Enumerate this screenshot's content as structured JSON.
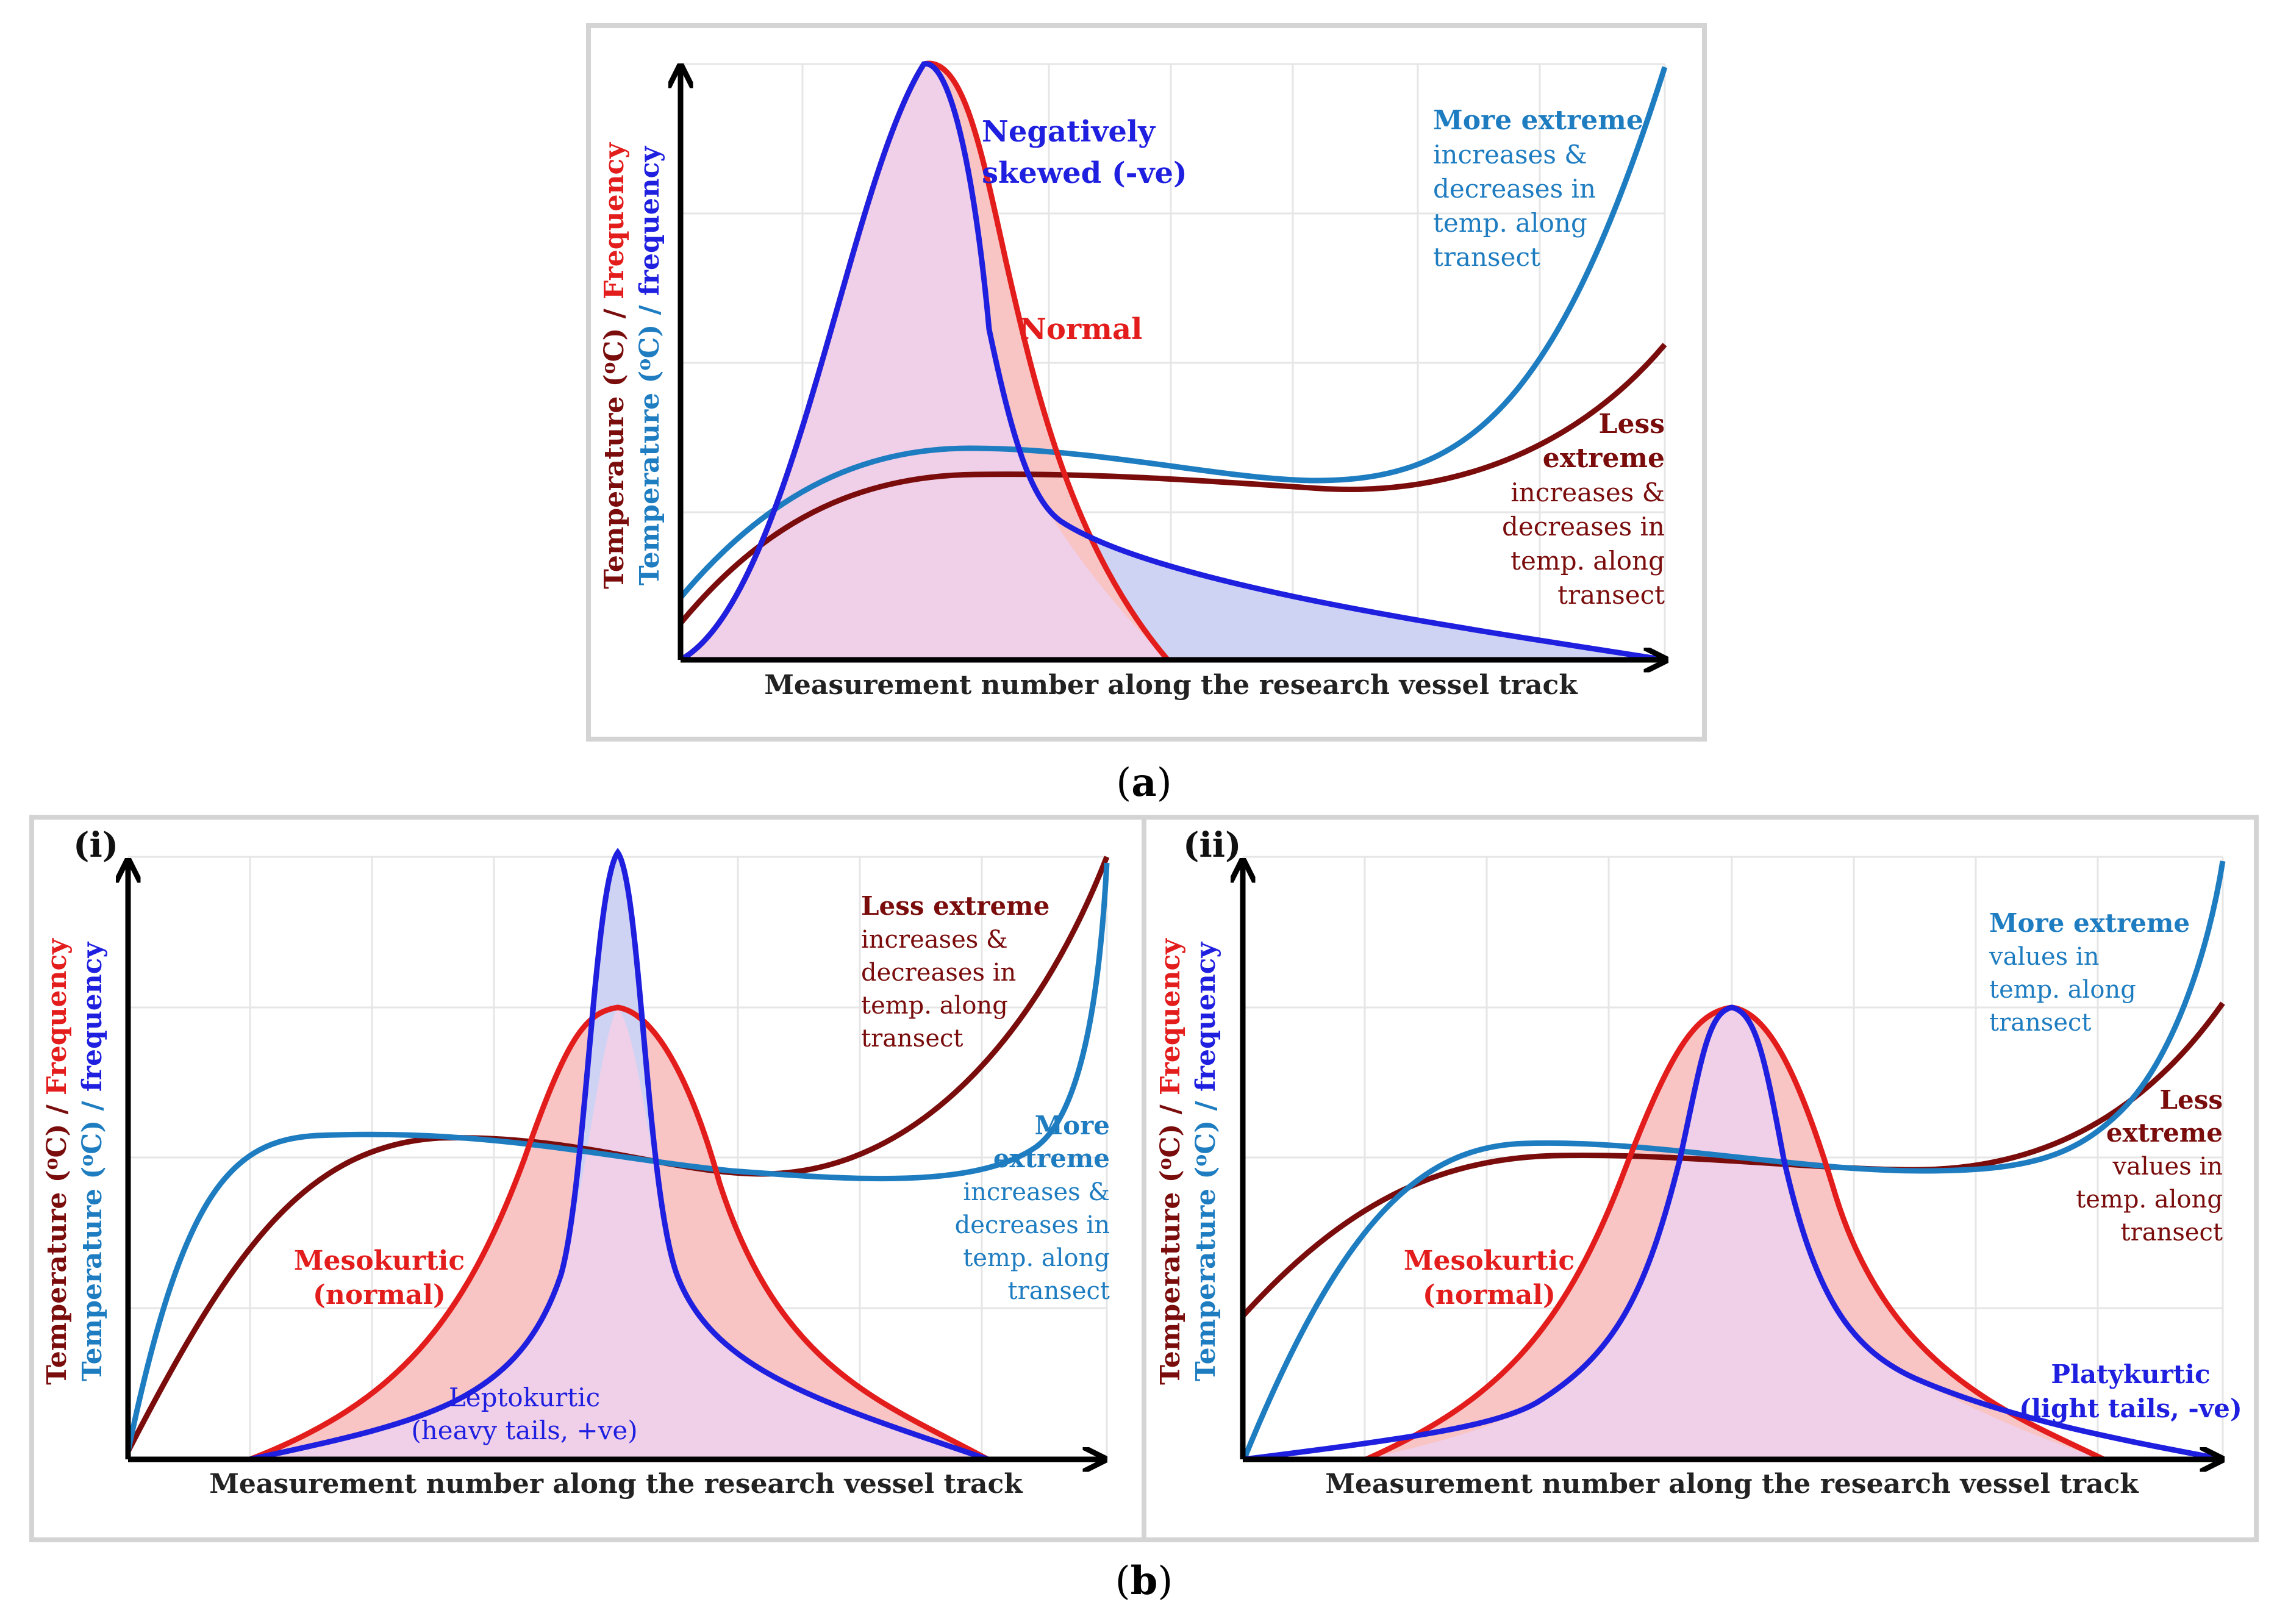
{
  "colors": {
    "dark_red": "#7a0c0c",
    "red": "#e31c1c",
    "blue": "#1f1fe0",
    "teal": "#1e7cc0",
    "frame": "#d4d4d4",
    "grid": "#e6e6e6",
    "pink_fill": "#f0cfe8",
    "salmon_fill": "#f8c4c4",
    "lavender_fill": "#cfd3f3"
  },
  "panel_a": {
    "ylabel_part1": "Temperature (",
    "ylabel_part2": "o",
    "ylabel_part3": "C) / ",
    "ylabel_freq_red": "Frequency",
    "ylabel_freq_blue": "frequency",
    "xlabel": "Measurement number along the research vessel track",
    "labels": {
      "neg_skew_line1": "Negatively",
      "neg_skew_line2": "skewed (-ve)",
      "normal": "Normal",
      "more_extreme_title": "More extreme",
      "more_extreme_l1": "increases &",
      "more_extreme_l2": "decreases in",
      "more_extreme_l3": "temp. along",
      "more_extreme_l4": "transect",
      "less_title1": "Less",
      "less_title2": "extreme",
      "less_l1": "increases &",
      "less_l2": "decreases in",
      "less_l3": "temp. along",
      "less_l4": "transect"
    },
    "caption_open": "(",
    "caption_letter": "a",
    "caption_close": ")"
  },
  "panel_b_i": {
    "tag": "(i)",
    "xlabel": "Measurement number along the research vessel track",
    "labels": {
      "less_title": "Less extreme",
      "less_l1": "increases &",
      "less_l2": "decreases in",
      "less_l3": "temp. along",
      "less_l4": "transect",
      "more_title1": "More",
      "more_title2": "extreme",
      "more_l1": "increases &",
      "more_l2": "decreases in",
      "more_l3": "temp. along",
      "more_l4": "transect",
      "meso1": "Mesokurtic",
      "meso2": "(normal)",
      "lepto1": "Leptokurtic",
      "lepto2": "(heavy tails, +ve)"
    }
  },
  "panel_b_ii": {
    "tag": "(ii)",
    "xlabel": "Measurement number along the research vessel track",
    "labels": {
      "more_title": "More extreme",
      "more_l1": "values in",
      "more_l2": "temp. along",
      "more_l3": "transect",
      "less_title1": "Less",
      "less_title2": "extreme",
      "less_l1": "values in",
      "less_l2": "temp. along",
      "less_l3": "transect",
      "meso1": "Mesokurtic",
      "meso2": "(normal)",
      "platy1": "Platykurtic",
      "platy2": "(light tails, -ve)"
    }
  },
  "caption_b": {
    "open": "(",
    "letter": "b",
    "close": ")"
  }
}
